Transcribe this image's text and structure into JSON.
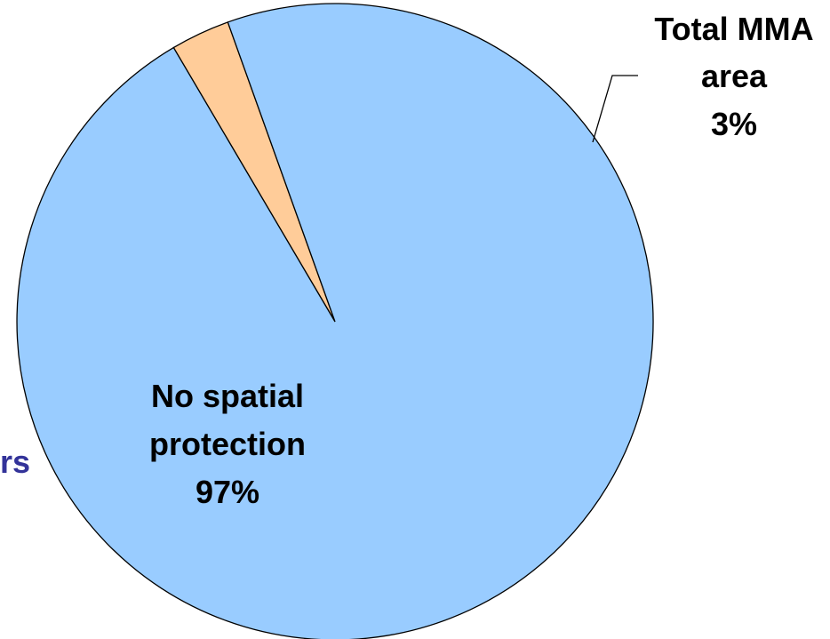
{
  "chart_data": {
    "type": "pie",
    "slices": [
      {
        "label_lines": [
          "Total MMA",
          "area",
          "3%"
        ],
        "value": 3,
        "color": "#FFCC99"
      },
      {
        "label_lines": [
          "No spatial",
          "protection",
          "97%"
        ],
        "value": 97,
        "color": "#99CCFF"
      }
    ],
    "outline_color": "#000000"
  },
  "clipped_text": {
    "text": "rs",
    "color": "#333399"
  }
}
